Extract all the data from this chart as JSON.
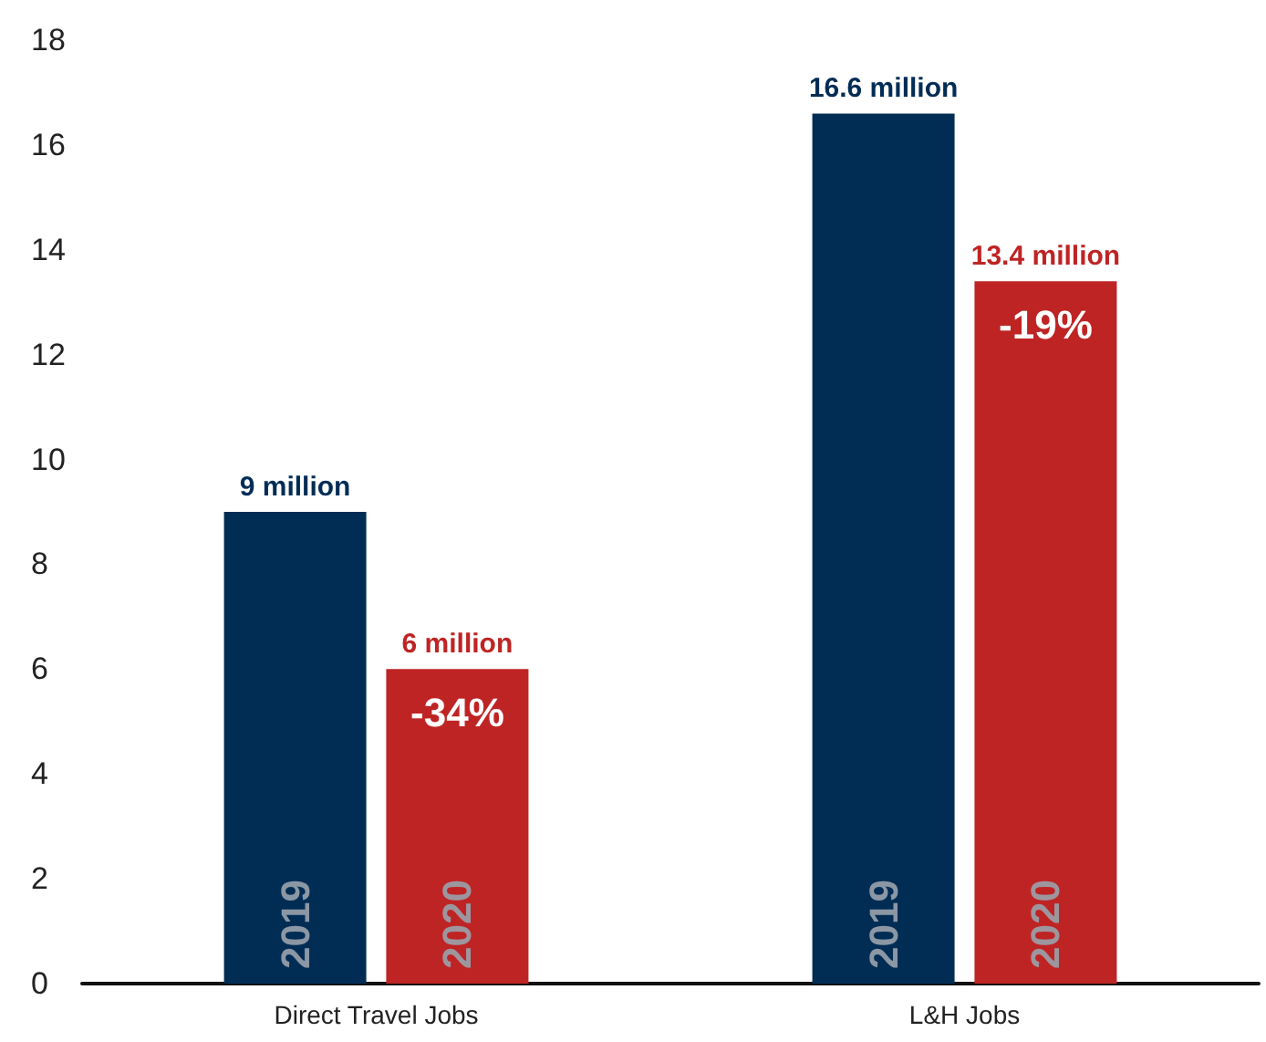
{
  "chart_data": {
    "type": "bar",
    "categories": [
      "Direct Travel Jobs",
      "L&H Jobs"
    ],
    "series": [
      {
        "name": "2019",
        "color": "#012d55",
        "values": [
          9,
          16.6
        ],
        "value_labels": [
          "9 million",
          "16.6 million"
        ]
      },
      {
        "name": "2020",
        "color": "#bf2424",
        "values": [
          6,
          13.4
        ],
        "value_labels": [
          "6 million",
          "13.4 million"
        ]
      }
    ],
    "annotations": [
      "-34%",
      "-19%"
    ],
    "ylim": [
      0,
      18
    ],
    "yticks": [
      0,
      2,
      4,
      6,
      8,
      10,
      12,
      14,
      16,
      18
    ],
    "grid": false,
    "legend": false
  }
}
